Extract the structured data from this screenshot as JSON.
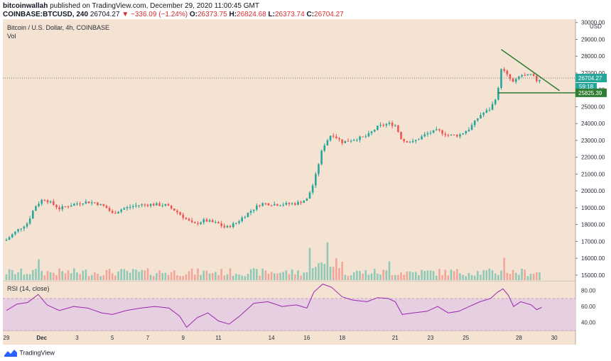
{
  "header": {
    "author": "bitcoinwallah",
    "published_text": "published on TradingView.com, December 29, 2020 11:00:45 GMT",
    "symbol": "COINBASE:BTCUSD, 240",
    "last": "26704.27",
    "change": "−336.09 (−1.24%)",
    "o_label": "O:",
    "o_val": "26373.75",
    "h_label": "H:",
    "h_val": "26824.68",
    "l_label": "L:",
    "l_val": "26373.74",
    "c_label": "C:",
    "c_val": "26704.27"
  },
  "pane": {
    "title": "Bitcoin / U.S. Dollar, 4h, COINBASE",
    "vol_label": "Vol",
    "rsi_label": "RSI (14, close)",
    "currency": "USD"
  },
  "price_tags": {
    "last": "26704.27",
    "countdown": "59:18",
    "support": "25825.39"
  },
  "footer": {
    "brand": "TradingView"
  },
  "colors": {
    "background": "#f4e3d2",
    "up": "#26a69a",
    "down": "#ef5350",
    "vol_up": "#8fc9b8",
    "vol_down": "#f2a59b",
    "rsi_line": "#9c27b0",
    "rsi_band": "#e6cfe0",
    "trendline": "#2e7d32"
  },
  "chart_data": {
    "type": "candlestick",
    "title": "Bitcoin / U.S. Dollar, 4h, COINBASE",
    "y_ticks": [
      15000,
      16000,
      17000,
      18000,
      19000,
      20000,
      21000,
      22000,
      23000,
      24000,
      25000,
      26000,
      27000,
      28000,
      29000,
      30000
    ],
    "ylim": [
      14700,
      30200
    ],
    "rsi_ticks": [
      40,
      60,
      80
    ],
    "rsi_lim": [
      30,
      92
    ],
    "rsi_band": [
      30,
      70
    ],
    "x_ticks": [
      {
        "label": "29",
        "day": 0
      },
      {
        "label": "Dec",
        "day": 2
      },
      {
        "label": "3",
        "day": 4
      },
      {
        "label": "5",
        "day": 6
      },
      {
        "label": "7",
        "day": 8
      },
      {
        "label": "9",
        "day": 10
      },
      {
        "label": "11",
        "day": 12
      },
      {
        "label": "14",
        "day": 15
      },
      {
        "label": "16",
        "day": 17
      },
      {
        "label": "18",
        "day": 19
      },
      {
        "label": "21",
        "day": 22
      },
      {
        "label": "23",
        "day": 24
      },
      {
        "label": "25",
        "day": 26
      },
      {
        "label": "28",
        "day": 29
      },
      {
        "label": "30",
        "day": 31
      }
    ],
    "x_range_days": [
      -0.2,
      32.2
    ],
    "close_path": [
      {
        "d": 0.0,
        "c": 17100
      },
      {
        "d": 0.6,
        "c": 17650
      },
      {
        "d": 1.2,
        "c": 18100
      },
      {
        "d": 1.6,
        "c": 19050
      },
      {
        "d": 2.1,
        "c": 19550
      },
      {
        "d": 2.5,
        "c": 19300
      },
      {
        "d": 3.0,
        "c": 18950
      },
      {
        "d": 3.6,
        "c": 19150
      },
      {
        "d": 4.4,
        "c": 19350
      },
      {
        "d": 5.0,
        "c": 19300
      },
      {
        "d": 5.6,
        "c": 19050
      },
      {
        "d": 6.0,
        "c": 18650
      },
      {
        "d": 6.6,
        "c": 18950
      },
      {
        "d": 7.4,
        "c": 19150
      },
      {
        "d": 8.2,
        "c": 19200
      },
      {
        "d": 9.0,
        "c": 19150
      },
      {
        "d": 9.6,
        "c": 18800
      },
      {
        "d": 10.2,
        "c": 18300
      },
      {
        "d": 10.6,
        "c": 18000
      },
      {
        "d": 11.2,
        "c": 18250
      },
      {
        "d": 12.0,
        "c": 18050
      },
      {
        "d": 12.4,
        "c": 17800
      },
      {
        "d": 13.0,
        "c": 18100
      },
      {
        "d": 13.8,
        "c": 18800
      },
      {
        "d": 14.4,
        "c": 19250
      },
      {
        "d": 15.4,
        "c": 19200
      },
      {
        "d": 16.4,
        "c": 19250
      },
      {
        "d": 17.0,
        "c": 19500
      },
      {
        "d": 17.4,
        "c": 20500
      },
      {
        "d": 17.9,
        "c": 22600
      },
      {
        "d": 18.4,
        "c": 23400
      },
      {
        "d": 19.0,
        "c": 22900
      },
      {
        "d": 19.6,
        "c": 23050
      },
      {
        "d": 20.4,
        "c": 23250
      },
      {
        "d": 21.0,
        "c": 23800
      },
      {
        "d": 21.6,
        "c": 24000
      },
      {
        "d": 22.0,
        "c": 23900
      },
      {
        "d": 22.4,
        "c": 23000
      },
      {
        "d": 23.0,
        "c": 22900
      },
      {
        "d": 23.8,
        "c": 23400
      },
      {
        "d": 24.4,
        "c": 23600
      },
      {
        "d": 25.0,
        "c": 23300
      },
      {
        "d": 25.6,
        "c": 23300
      },
      {
        "d": 26.2,
        "c": 23700
      },
      {
        "d": 26.8,
        "c": 24500
      },
      {
        "d": 27.4,
        "c": 24900
      },
      {
        "d": 27.8,
        "c": 25800
      },
      {
        "d": 28.0,
        "c": 27300
      },
      {
        "d": 28.3,
        "c": 26900
      },
      {
        "d": 28.7,
        "c": 26400
      },
      {
        "d": 29.1,
        "c": 26900
      },
      {
        "d": 29.4,
        "c": 26800
      },
      {
        "d": 29.7,
        "c": 26900
      },
      {
        "d": 30.0,
        "c": 26550
      },
      {
        "d": 30.3,
        "c": 26700
      }
    ],
    "volume_spikes": [
      {
        "d": 1.8,
        "v": 0.42
      },
      {
        "d": 17.2,
        "v": 0.65
      },
      {
        "d": 18.1,
        "v": 0.76
      },
      {
        "d": 18.6,
        "v": 0.44
      },
      {
        "d": 21.7,
        "v": 0.38
      },
      {
        "d": 28.1,
        "v": 0.45
      }
    ],
    "rsi_path": [
      {
        "d": 0.0,
        "c": 55
      },
      {
        "d": 0.6,
        "c": 63
      },
      {
        "d": 1.2,
        "c": 65
      },
      {
        "d": 1.8,
        "c": 75
      },
      {
        "d": 2.3,
        "c": 62
      },
      {
        "d": 3.0,
        "c": 55
      },
      {
        "d": 3.8,
        "c": 60
      },
      {
        "d": 4.6,
        "c": 58
      },
      {
        "d": 5.4,
        "c": 52
      },
      {
        "d": 6.0,
        "c": 50
      },
      {
        "d": 6.8,
        "c": 55
      },
      {
        "d": 7.6,
        "c": 58
      },
      {
        "d": 8.4,
        "c": 60
      },
      {
        "d": 9.2,
        "c": 58
      },
      {
        "d": 9.8,
        "c": 48
      },
      {
        "d": 10.2,
        "c": 34
      },
      {
        "d": 10.8,
        "c": 46
      },
      {
        "d": 11.4,
        "c": 52
      },
      {
        "d": 12.0,
        "c": 42
      },
      {
        "d": 12.6,
        "c": 38
      },
      {
        "d": 13.2,
        "c": 48
      },
      {
        "d": 14.0,
        "c": 64
      },
      {
        "d": 14.8,
        "c": 66
      },
      {
        "d": 15.6,
        "c": 60
      },
      {
        "d": 16.4,
        "c": 62
      },
      {
        "d": 17.0,
        "c": 58
      },
      {
        "d": 17.4,
        "c": 78
      },
      {
        "d": 17.9,
        "c": 88
      },
      {
        "d": 18.4,
        "c": 84
      },
      {
        "d": 19.0,
        "c": 72
      },
      {
        "d": 19.6,
        "c": 68
      },
      {
        "d": 20.4,
        "c": 66
      },
      {
        "d": 21.0,
        "c": 71
      },
      {
        "d": 21.6,
        "c": 70
      },
      {
        "d": 22.0,
        "c": 66
      },
      {
        "d": 22.4,
        "c": 50
      },
      {
        "d": 23.0,
        "c": 52
      },
      {
        "d": 23.8,
        "c": 54
      },
      {
        "d": 24.4,
        "c": 60
      },
      {
        "d": 25.0,
        "c": 52
      },
      {
        "d": 25.6,
        "c": 54
      },
      {
        "d": 26.2,
        "c": 60
      },
      {
        "d": 26.8,
        "c": 66
      },
      {
        "d": 27.4,
        "c": 70
      },
      {
        "d": 27.8,
        "c": 78
      },
      {
        "d": 28.1,
        "c": 82
      },
      {
        "d": 28.4,
        "c": 74
      },
      {
        "d": 28.7,
        "c": 60
      },
      {
        "d": 29.1,
        "c": 66
      },
      {
        "d": 29.4,
        "c": 64
      },
      {
        "d": 29.7,
        "c": 62
      },
      {
        "d": 30.0,
        "c": 56
      },
      {
        "d": 30.3,
        "c": 59
      }
    ],
    "triangle": {
      "top": {
        "d1": 28.0,
        "p1": 28400,
        "d2": 31.3,
        "p2": 25950
      },
      "base": {
        "d1": 27.8,
        "p1": 25825,
        "d2": 31.7,
        "p2": 25825
      }
    }
  }
}
